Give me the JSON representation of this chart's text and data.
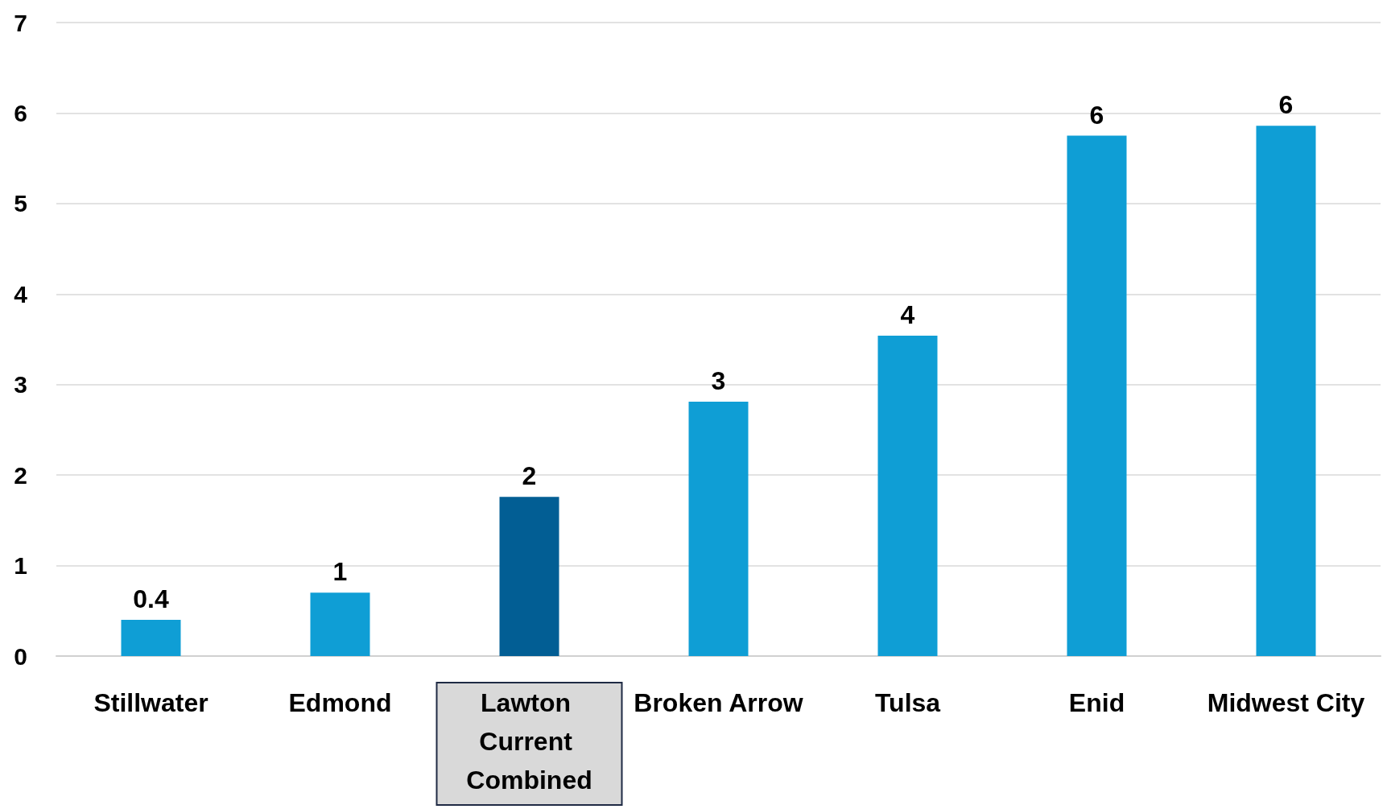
{
  "chart_data": {
    "type": "bar",
    "categories": [
      "Stillwater",
      "Edmond",
      "Lawton Current Combined",
      "Broken Arrow",
      "Tulsa",
      "Enid",
      "Midwest City"
    ],
    "values": [
      0.4,
      0.7,
      1.76,
      2.81,
      3.54,
      5.75,
      5.86
    ],
    "value_labels": [
      "0.4",
      "1",
      "2",
      "3",
      "4",
      "6",
      "6"
    ],
    "colors": [
      "#0f9ed5",
      "#0f9ed5",
      "#025e94",
      "#0f9ed5",
      "#0f9ed5",
      "#0f9ed5",
      "#0f9ed5"
    ],
    "ylim": [
      0,
      7
    ],
    "yticks": [
      0,
      1,
      2,
      3,
      4,
      5,
      6,
      7
    ],
    "grid": "y"
  }
}
